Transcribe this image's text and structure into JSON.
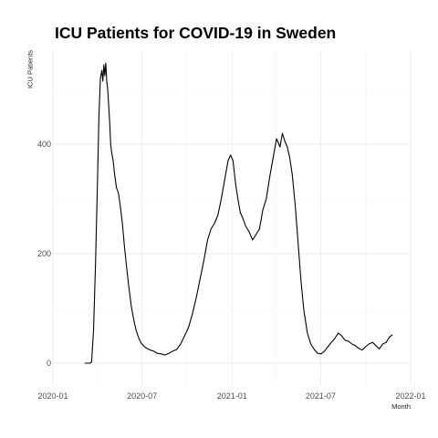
{
  "chart_data": {
    "type": "line",
    "title": "ICU Patients for COVID-19 in Sweden",
    "xlabel": "Month",
    "ylabel": "ICU Patients",
    "x_ticks": [
      "2020-01",
      "2020-07",
      "2021-01",
      "2021-07",
      "2022-01"
    ],
    "y_ticks": [
      "0",
      "200",
      "400"
    ],
    "ylim": [
      -40,
      570
    ],
    "xlim": [
      "2020-01-01",
      "2022-01-01"
    ],
    "grid": true,
    "series": [
      {
        "color": "#000000",
        "x": [
          "2020-03-06",
          "2020-03-16",
          "2020-03-20",
          "2020-03-24",
          "2020-03-28",
          "2020-04-01",
          "2020-04-04",
          "2020-04-07",
          "2020-04-10",
          "2020-04-12",
          "2020-04-14",
          "2020-04-16",
          "2020-04-18",
          "2020-04-20",
          "2020-04-22",
          "2020-04-24",
          "2020-04-26",
          "2020-04-28",
          "2020-04-30",
          "2020-05-03",
          "2020-05-06",
          "2020-05-10",
          "2020-05-14",
          "2020-05-18",
          "2020-05-22",
          "2020-05-26",
          "2020-05-30",
          "2020-06-04",
          "2020-06-09",
          "2020-06-14",
          "2020-06-19",
          "2020-06-24",
          "2020-06-29",
          "2020-07-05",
          "2020-07-11",
          "2020-07-18",
          "2020-07-25",
          "2020-08-01",
          "2020-08-09",
          "2020-08-17",
          "2020-08-25",
          "2020-09-02",
          "2020-09-10",
          "2020-09-18",
          "2020-09-26",
          "2020-10-04",
          "2020-10-12",
          "2020-10-20",
          "2020-10-28",
          "2020-11-05",
          "2020-11-12",
          "2020-11-19",
          "2020-11-26",
          "2020-12-03",
          "2020-12-10",
          "2020-12-17",
          "2020-12-24",
          "2020-12-29",
          "2021-01-03",
          "2021-01-08",
          "2021-01-13",
          "2021-01-18",
          "2021-01-23",
          "2021-01-29",
          "2021-02-05",
          "2021-02-12",
          "2021-02-19",
          "2021-02-26",
          "2021-03-05",
          "2021-03-12",
          "2021-03-19",
          "2021-03-26",
          "2021-04-02",
          "2021-04-09",
          "2021-04-14",
          "2021-04-19",
          "2021-04-24",
          "2021-04-29",
          "2021-05-04",
          "2021-05-10",
          "2021-05-16",
          "2021-05-22",
          "2021-05-28",
          "2021-06-04",
          "2021-06-11",
          "2021-06-18",
          "2021-06-25",
          "2021-07-02",
          "2021-07-09",
          "2021-07-16",
          "2021-07-23",
          "2021-07-30",
          "2021-08-06",
          "2021-08-13",
          "2021-08-20",
          "2021-08-27",
          "2021-09-03",
          "2021-09-10",
          "2021-09-17",
          "2021-09-24",
          "2021-10-01",
          "2021-10-08",
          "2021-10-15",
          "2021-10-22",
          "2021-10-29",
          "2021-11-05",
          "2021-11-12",
          "2021-11-19",
          "2021-11-25"
        ],
        "y": [
          0,
          0,
          2,
          60,
          180,
          330,
          450,
          520,
          535,
          515,
          545,
          525,
          548,
          515,
          500,
          470,
          440,
          400,
          385,
          370,
          345,
          320,
          310,
          285,
          255,
          215,
          180,
          140,
          105,
          80,
          60,
          47,
          37,
          31,
          27,
          24,
          22,
          18,
          17,
          15,
          18,
          22,
          25,
          35,
          50,
          65,
          90,
          120,
          155,
          190,
          225,
          245,
          255,
          270,
          300,
          335,
          370,
          380,
          370,
          330,
          300,
          275,
          265,
          250,
          240,
          225,
          235,
          245,
          280,
          300,
          340,
          375,
          410,
          395,
          420,
          405,
          395,
          375,
          345,
          290,
          220,
          150,
          95,
          55,
          35,
          25,
          18,
          17,
          22,
          30,
          38,
          45,
          55,
          50,
          42,
          40,
          35,
          32,
          27,
          24,
          30,
          35,
          38,
          32,
          26,
          35,
          38,
          48,
          52
        ]
      }
    ]
  }
}
